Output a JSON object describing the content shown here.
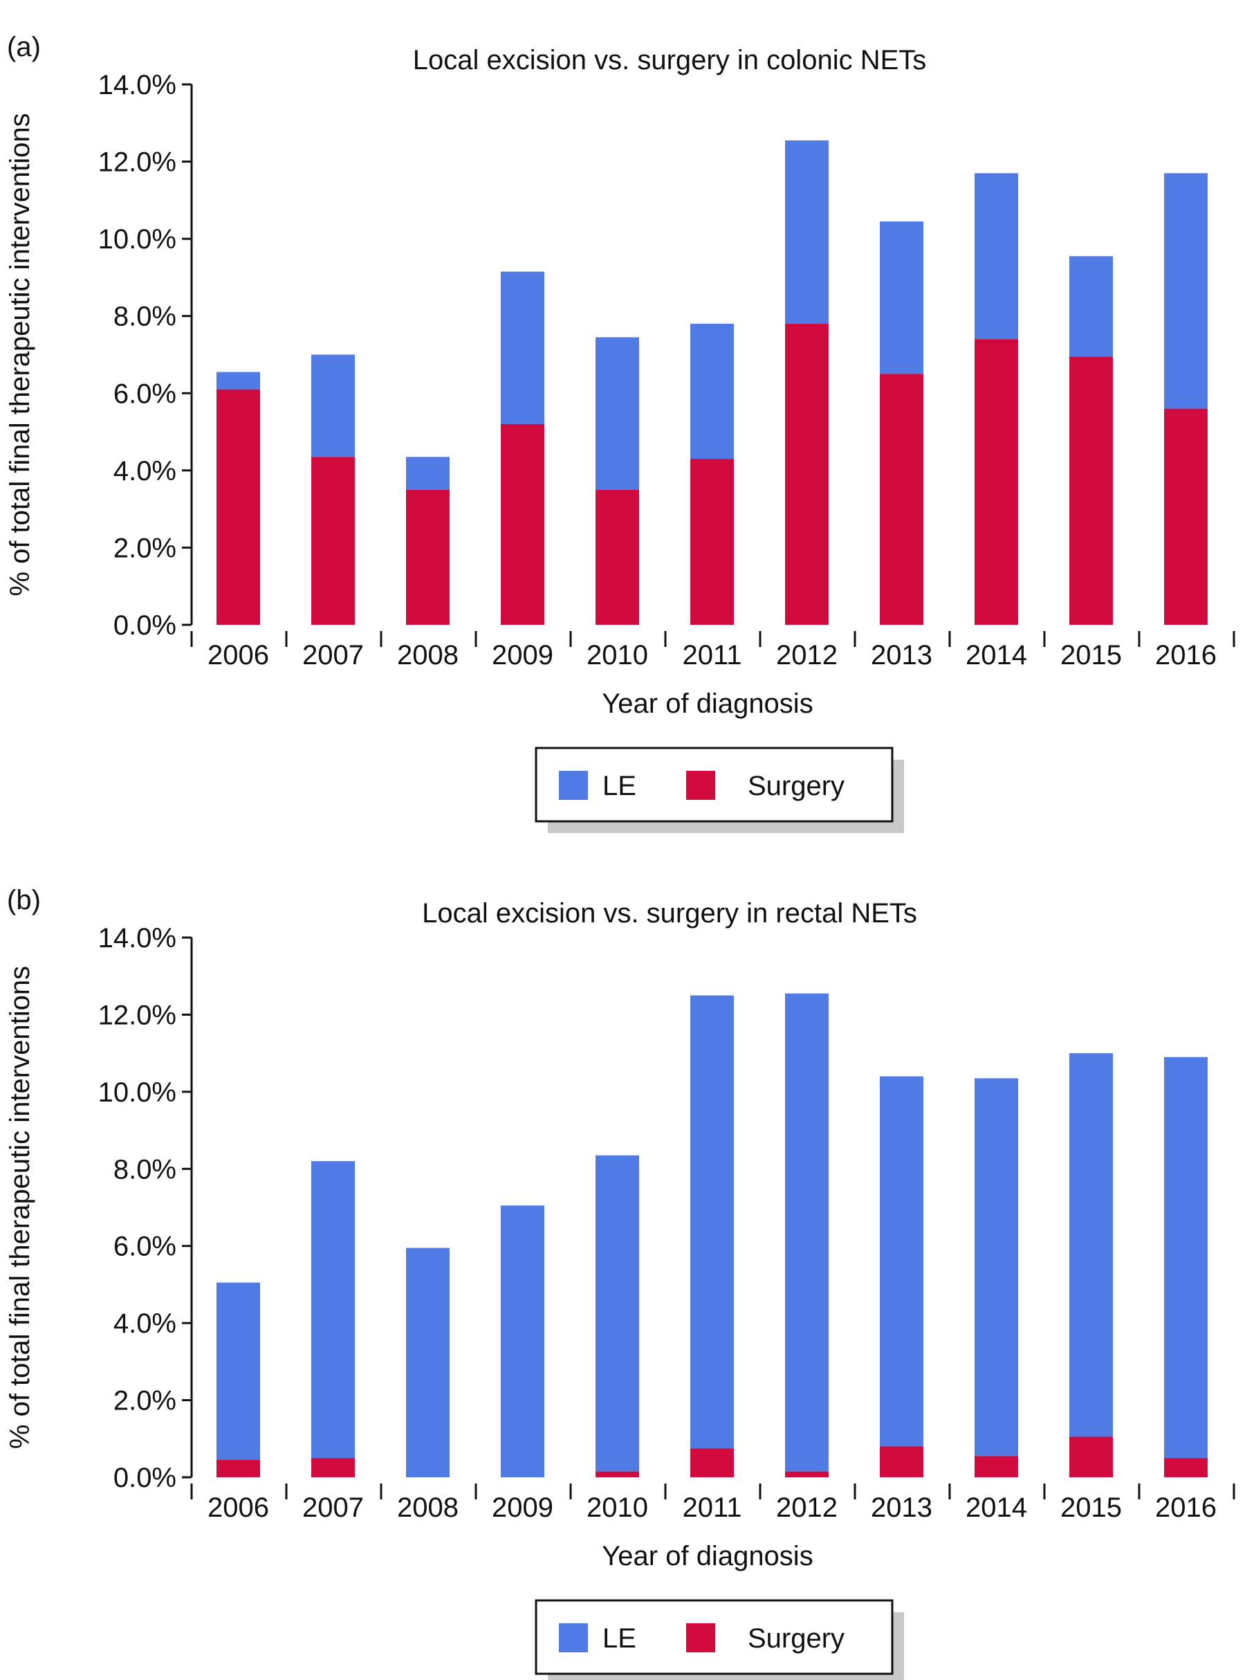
{
  "colors": {
    "le": "#507be5",
    "surgery": "#d10a3e",
    "axis": "#111111",
    "legend_shadow": "#c8c8c8"
  },
  "chart_data": [
    {
      "type": "bar",
      "stacked": true,
      "panel_label": "(a)",
      "title": "Local excision vs. surgery in colonic NETs",
      "xlabel": "Year of diagnosis",
      "ylabel": "% of total final therapeutic interventions",
      "ylim": [
        0,
        14
      ],
      "yticks": [
        "0.0%",
        "2.0%",
        "4.0%",
        "6.0%",
        "8.0%",
        "10.0%",
        "12.0%",
        "14.0%"
      ],
      "categories": [
        "2006",
        "2007",
        "2008",
        "2009",
        "2010",
        "2011",
        "2012",
        "2013",
        "2014",
        "2015",
        "2016"
      ],
      "series": [
        {
          "name": "Surgery",
          "values": [
            6.1,
            4.35,
            3.5,
            5.2,
            3.5,
            4.3,
            7.8,
            6.5,
            7.4,
            6.95,
            5.6
          ]
        },
        {
          "name": "LE",
          "values": [
            0.45,
            2.65,
            0.85,
            3.95,
            3.95,
            3.5,
            4.75,
            3.95,
            4.3,
            2.6,
            6.1
          ]
        }
      ],
      "legend": {
        "position": "bottom-center",
        "entries": [
          "LE",
          "Surgery"
        ]
      }
    },
    {
      "type": "bar",
      "stacked": true,
      "panel_label": "(b)",
      "title": "Local excision vs. surgery in rectal NETs",
      "xlabel": "Year of diagnosis",
      "ylabel": "% of total final therapeutic interventions",
      "ylim": [
        0,
        14
      ],
      "yticks": [
        "0.0%",
        "2.0%",
        "4.0%",
        "6.0%",
        "8.0%",
        "10.0%",
        "12.0%",
        "14.0%"
      ],
      "categories": [
        "2006",
        "2007",
        "2008",
        "2009",
        "2010",
        "2011",
        "2012",
        "2013",
        "2014",
        "2015",
        "2016"
      ],
      "series": [
        {
          "name": "Surgery",
          "values": [
            0.45,
            0.5,
            0.0,
            0.0,
            0.15,
            0.75,
            0.15,
            0.8,
            0.55,
            1.05,
            0.5
          ]
        },
        {
          "name": "LE",
          "values": [
            4.6,
            7.7,
            5.95,
            7.05,
            8.2,
            11.75,
            12.4,
            9.6,
            9.8,
            9.95,
            10.4
          ]
        }
      ],
      "legend": {
        "position": "bottom-center",
        "entries": [
          "LE",
          "Surgery"
        ]
      }
    }
  ]
}
